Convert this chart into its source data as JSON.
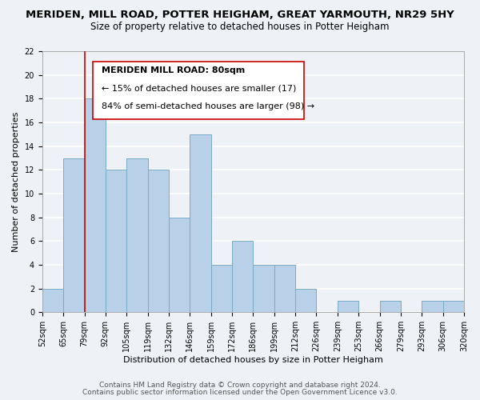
{
  "title": "MERIDEN, MILL ROAD, POTTER HEIGHAM, GREAT YARMOUTH, NR29 5HY",
  "subtitle": "Size of property relative to detached houses in Potter Heigham",
  "xlabel": "Distribution of detached houses by size in Potter Heigham",
  "ylabel": "Number of detached properties",
  "bin_labels": [
    "52sqm",
    "65sqm",
    "79sqm",
    "92sqm",
    "105sqm",
    "119sqm",
    "132sqm",
    "146sqm",
    "159sqm",
    "172sqm",
    "186sqm",
    "199sqm",
    "212sqm",
    "226sqm",
    "239sqm",
    "253sqm",
    "266sqm",
    "279sqm",
    "293sqm",
    "306sqm",
    "320sqm"
  ],
  "bar_values": [
    2,
    13,
    18,
    12,
    13,
    12,
    8,
    15,
    4,
    6,
    4,
    4,
    2,
    0,
    1,
    0,
    1,
    0,
    1,
    1
  ],
  "bar_color": "#b8d0e8",
  "bar_edge_color": "#7aaac8",
  "annotation_line1": "MERIDEN MILL ROAD: 80sqm",
  "annotation_line2": "← 15% of detached houses are smaller (17)",
  "annotation_line3": "84% of semi-detached houses are larger (98) →",
  "vline_index": 2,
  "vline_color": "#cc0000",
  "ylim": [
    0,
    22
  ],
  "yticks": [
    0,
    2,
    4,
    6,
    8,
    10,
    12,
    14,
    16,
    18,
    20,
    22
  ],
  "footer1": "Contains HM Land Registry data © Crown copyright and database right 2024.",
  "footer2": "Contains public sector information licensed under the Open Government Licence v3.0.",
  "background_color": "#eef2f7",
  "grid_color": "#ffffff",
  "title_fontsize": 9.5,
  "subtitle_fontsize": 8.5,
  "axis_label_fontsize": 8,
  "tick_fontsize": 7,
  "annotation_fontsize": 8,
  "footer_fontsize": 6.5
}
